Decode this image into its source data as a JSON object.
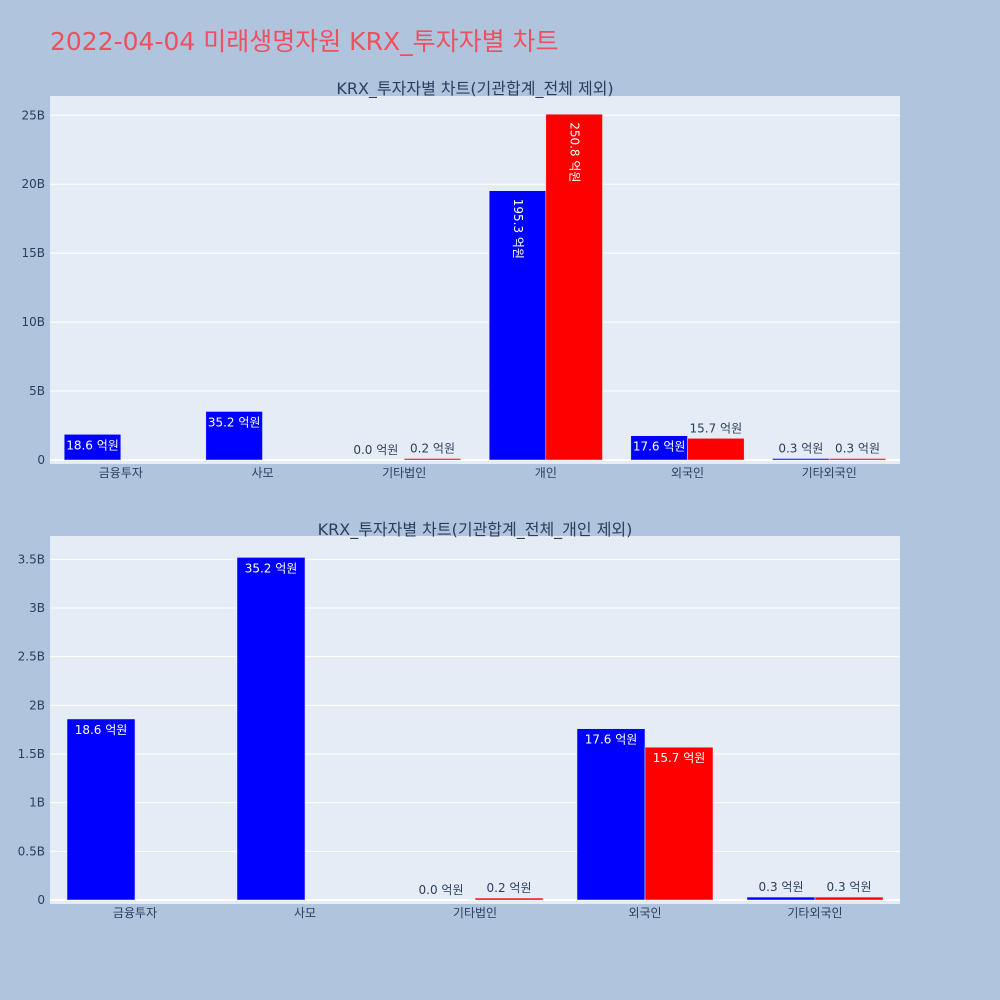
{
  "page": {
    "title": "2022-04-04 미래생명자원 KRX_투자자별 차트"
  },
  "chart_data": [
    {
      "type": "bar",
      "title": "KRX_투자자별 차트(기관합계_전체 제외)",
      "categories": [
        "금융투자",
        "사모",
        "기타법인",
        "개인",
        "외국인",
        "기타외국인"
      ],
      "series": [
        {
          "color": "#0000ff",
          "values": [
            1860000000,
            3520000000,
            0,
            19530000000,
            1760000000,
            30000000
          ],
          "labels": [
            "18.6 억원",
            "35.2 억원",
            "0.0 억원",
            "195.3 억원",
            "17.6 억원",
            "0.3 억원"
          ]
        },
        {
          "color": "#ff0000",
          "values": [
            0,
            0,
            20000000,
            25080000000,
            1570000000,
            30000000
          ],
          "labels": [
            "",
            "",
            "0.2 억원",
            "250.8 억원",
            "15.7 억원",
            "0.3 억원"
          ]
        }
      ],
      "ylim": [
        0,
        26400000000
      ],
      "yticks": [
        0,
        5000000000,
        10000000000,
        15000000000,
        20000000000,
        25000000000
      ],
      "ytick_labels": [
        "0",
        "5B",
        "10B",
        "15B",
        "20B",
        "25B"
      ],
      "grid": true
    },
    {
      "type": "bar",
      "title": "KRX_투자자별 차트(기관합계_전체_개인 제외)",
      "categories": [
        "금융투자",
        "사모",
        "기타법인",
        "외국인",
        "기타외국인"
      ],
      "series": [
        {
          "color": "#0000ff",
          "values": [
            1860000000,
            3520000000,
            0,
            1760000000,
            30000000
          ],
          "labels": [
            "18.6 억원",
            "35.2 억원",
            "0.0 억원",
            "17.6 억원",
            "0.3 억원"
          ]
        },
        {
          "color": "#ff0000",
          "values": [
            0,
            0,
            20000000,
            1570000000,
            30000000
          ],
          "labels": [
            "",
            "",
            "0.2 억원",
            "15.7 억원",
            "0.3 억원"
          ]
        }
      ],
      "ylim": [
        0,
        3740000000
      ],
      "yticks": [
        0,
        500000000,
        1000000000,
        1500000000,
        2000000000,
        2500000000,
        3000000000,
        3500000000
      ],
      "ytick_labels": [
        "0",
        "0.5B",
        "1B",
        "1.5B",
        "2B",
        "2.5B",
        "3B",
        "3.5B"
      ],
      "grid": true
    }
  ]
}
